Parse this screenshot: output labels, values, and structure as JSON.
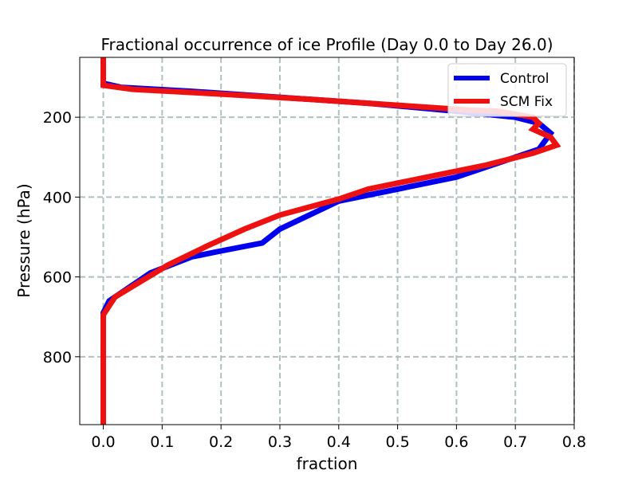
{
  "chart_data": {
    "type": "line",
    "title": "Fractional occurrence of ice Profile (Day 0.0 to Day 26.0)",
    "xlabel": "fraction",
    "ylabel": "Pressure (hPa)",
    "xlim": [
      -0.04,
      0.8
    ],
    "ylim": [
      970,
      50
    ],
    "y_inverted": true,
    "xticks": [
      0.0,
      0.1,
      0.2,
      0.3,
      0.4,
      0.5,
      0.6,
      0.7,
      0.8
    ],
    "xtick_labels": [
      "0.0",
      "0.1",
      "0.2",
      "0.3",
      "0.4",
      "0.5",
      "0.6",
      "0.7",
      "0.8"
    ],
    "yticks": [
      200,
      400,
      600,
      800
    ],
    "ytick_labels": [
      "200",
      "400",
      "600",
      "800"
    ],
    "grid": true,
    "legend": "top-right",
    "series": [
      {
        "name": "Control",
        "color": "#0000ee",
        "points": [
          [
            0.0,
            50
          ],
          [
            0.0,
            115
          ],
          [
            0.03,
            125
          ],
          [
            0.15,
            135
          ],
          [
            0.3,
            150
          ],
          [
            0.45,
            165
          ],
          [
            0.6,
            185
          ],
          [
            0.7,
            200
          ],
          [
            0.74,
            215
          ],
          [
            0.76,
            240
          ],
          [
            0.74,
            280
          ],
          [
            0.7,
            300
          ],
          [
            0.66,
            320
          ],
          [
            0.6,
            350
          ],
          [
            0.5,
            380
          ],
          [
            0.4,
            410
          ],
          [
            0.3,
            480
          ],
          [
            0.27,
            515
          ],
          [
            0.2,
            535
          ],
          [
            0.15,
            550
          ],
          [
            0.08,
            590
          ],
          [
            0.01,
            660
          ],
          [
            0.0,
            690
          ],
          [
            0.0,
            800
          ],
          [
            0.0,
            970
          ]
        ]
      },
      {
        "name": "SCM Fix",
        "color": "#ee1111",
        "points": [
          [
            0.0,
            50
          ],
          [
            0.0,
            120
          ],
          [
            0.05,
            130
          ],
          [
            0.2,
            142
          ],
          [
            0.35,
            155
          ],
          [
            0.5,
            170
          ],
          [
            0.62,
            182
          ],
          [
            0.67,
            185
          ],
          [
            0.73,
            200
          ],
          [
            0.74,
            215
          ],
          [
            0.73,
            230
          ],
          [
            0.76,
            250
          ],
          [
            0.77,
            270
          ],
          [
            0.73,
            290
          ],
          [
            0.65,
            320
          ],
          [
            0.55,
            350
          ],
          [
            0.45,
            380
          ],
          [
            0.4,
            405
          ],
          [
            0.3,
            445
          ],
          [
            0.24,
            480
          ],
          [
            0.18,
            520
          ],
          [
            0.11,
            570
          ],
          [
            0.02,
            650
          ],
          [
            0.0,
            695
          ],
          [
            0.0,
            800
          ],
          [
            0.0,
            970
          ]
        ]
      }
    ]
  }
}
